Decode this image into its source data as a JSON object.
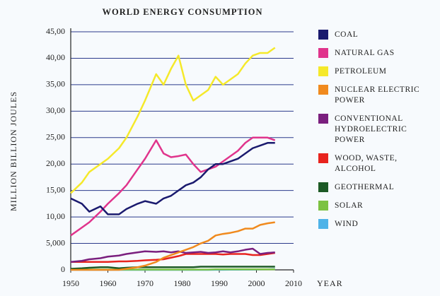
{
  "chart_data": {
    "type": "line",
    "title": "WORLD ENERGY CONSUMPTION",
    "x_label": "YEAR",
    "y_label": "MILLION BILLION JOULES",
    "x": [
      1950,
      1953,
      1955,
      1958,
      1960,
      1963,
      1965,
      1968,
      1970,
      1973,
      1975,
      1977,
      1979,
      1981,
      1983,
      1985,
      1987,
      1989,
      1991,
      1993,
      1995,
      1997,
      1999,
      2001,
      2003,
      2005
    ],
    "series": [
      {
        "name": "COAL",
        "color": "#1a1a6e",
        "values": [
          13.5,
          12.5,
          11,
          12,
          10.5,
          10.5,
          11.5,
          12.5,
          13,
          12.5,
          13.5,
          14,
          15,
          16,
          16.5,
          17.5,
          19,
          20,
          20,
          20.5,
          21,
          22,
          23,
          23.5,
          24,
          24
        ]
      },
      {
        "name": "NATURAL GAS",
        "color": "#e0348c",
        "values": [
          6.5,
          8,
          9,
          11,
          12.5,
          14.5,
          16,
          19,
          21,
          24.5,
          22,
          21.3,
          21.5,
          21.8,
          20,
          18.5,
          19,
          19.5,
          20.5,
          21.5,
          22.5,
          24,
          25,
          25,
          25,
          24.5
        ]
      },
      {
        "name": "PETROLEUM",
        "color": "#f5e92a",
        "values": [
          14.5,
          16.5,
          18.5,
          20,
          21,
          23,
          25,
          29,
          32,
          37,
          35,
          38,
          40.5,
          35,
          32,
          33,
          34,
          36.5,
          35,
          36,
          37,
          39,
          40.5,
          41,
          41,
          42
        ]
      },
      {
        "name": "NUCLEAR ELECTRIC POWER",
        "color": "#f08a1e",
        "values": [
          0,
          0,
          0,
          0,
          0,
          0,
          0.2,
          0.5,
          0.8,
          1.5,
          2.3,
          2.8,
          3.3,
          3.8,
          4.3,
          5,
          5.5,
          6.5,
          6.8,
          7,
          7.3,
          7.8,
          7.8,
          8.5,
          8.8,
          9
        ]
      },
      {
        "name": "CONVENTIONAL HYDROELECTRIC POWER",
        "color": "#7a1f7e",
        "values": [
          1.5,
          1.7,
          2,
          2.2,
          2.5,
          2.7,
          3,
          3.3,
          3.5,
          3.4,
          3.5,
          3.3,
          3.5,
          3.2,
          3.3,
          3.4,
          3.2,
          3.3,
          3.5,
          3.3,
          3.5,
          3.8,
          4,
          3,
          3.2,
          3.3
        ]
      },
      {
        "name": "WOOD, WASTE, ALCOHOL",
        "color": "#e8231e",
        "values": [
          1.5,
          1.5,
          1.5,
          1.5,
          1.5,
          1.6,
          1.6,
          1.7,
          1.8,
          1.9,
          2,
          2.3,
          2.6,
          3,
          3,
          3,
          3,
          3,
          2.9,
          3,
          3,
          3,
          2.8,
          2.8,
          3,
          3.2
        ]
      },
      {
        "name": "GEOTHERMAL",
        "color": "#1d5a25",
        "values": [
          0.2,
          0.3,
          0.4,
          0.5,
          0.5,
          0.3,
          0.4,
          0.5,
          0.5,
          0.5,
          0.5,
          0.5,
          0.5,
          0.5,
          0.5,
          0.6,
          0.6,
          0.6,
          0.6,
          0.6,
          0.6,
          0.6,
          0.6,
          0.6,
          0.6,
          0.6
        ]
      },
      {
        "name": "SOLAR",
        "color": "#7cc242",
        "values": [
          0.05,
          0.05,
          0.05,
          0.05,
          0.05,
          0.05,
          0.05,
          0.05,
          0.05,
          0.05,
          0.05,
          0.05,
          0.05,
          0.05,
          0.05,
          0.05,
          0.05,
          0.1,
          0.1,
          0.1,
          0.1,
          0.1,
          0.1,
          0.1,
          0.1,
          0.1
        ]
      },
      {
        "name": "WIND",
        "color": "#4fb3e8",
        "values": [
          0,
          0,
          0,
          0,
          0,
          0,
          0,
          0,
          0,
          0,
          0,
          0,
          0,
          0,
          0,
          0,
          0,
          0.02,
          0.02,
          0.03,
          0.03,
          0.05,
          0.05,
          0.08,
          0.1,
          0.15
        ]
      }
    ],
    "xlim": [
      1950,
      2010
    ],
    "xticks": [
      1950,
      1960,
      1970,
      1980,
      1990,
      2000,
      2010
    ],
    "ylim": [
      0,
      45
    ],
    "yticks": [
      0,
      {
        "value": 5,
        "label": "5,000"
      },
      {
        "value": 10,
        "label": "10,00"
      },
      {
        "value": 15,
        "label": "15,00"
      },
      {
        "value": 20,
        "label": "20,00"
      },
      {
        "value": 25,
        "label": "25,00"
      },
      {
        "value": 30,
        "label": "30,00"
      },
      {
        "value": 35,
        "label": "35,00"
      },
      {
        "value": 40,
        "label": "40,00"
      },
      {
        "value": 45,
        "label": "45,00"
      }
    ],
    "grid": true
  }
}
